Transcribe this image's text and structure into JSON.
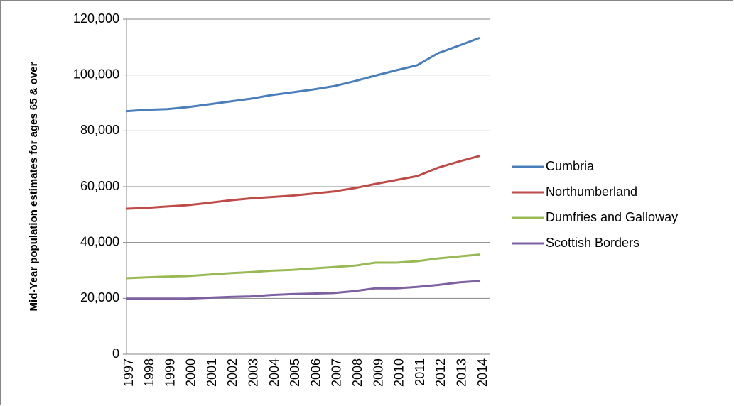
{
  "chart_data": {
    "type": "line",
    "y_label": "Mid-Year population estimates for ages 65 & over",
    "categories": [
      "1997",
      "1998",
      "1999",
      "2000",
      "2001",
      "2002",
      "2003",
      "2004",
      "2005",
      "2006",
      "2007",
      "2008",
      "2009",
      "2010",
      "2011",
      "2012",
      "2013",
      "2014"
    ],
    "series": [
      {
        "name": "Cumbria",
        "color": "#4a7ebb",
        "values": [
          87000,
          87500,
          87800,
          88500,
          89500,
          90500,
          91500,
          92800,
          93800,
          94800,
          96000,
          97800,
          99800,
          101700,
          103500,
          107800,
          110500,
          113300
        ]
      },
      {
        "name": "Northumberland",
        "color": "#be4b48",
        "values": [
          52100,
          52400,
          52900,
          53400,
          54200,
          55100,
          55800,
          56300,
          56800,
          57500,
          58300,
          59500,
          61000,
          62400,
          63800,
          66800,
          69000,
          71000
        ]
      },
      {
        "name": "Dumfries and Galloway",
        "color": "#98b954",
        "values": [
          27200,
          27500,
          27800,
          28000,
          28500,
          29000,
          29400,
          29900,
          30200,
          30700,
          31200,
          31700,
          32800,
          32800,
          33300,
          34300,
          35000,
          35700
        ]
      },
      {
        "name": "Scottish Borders",
        "color": "#7d60a0",
        "values": [
          19900,
          19900,
          19900,
          19900,
          20200,
          20500,
          20700,
          21200,
          21500,
          21700,
          21900,
          22600,
          23600,
          23600,
          24100,
          24800,
          25700,
          26200
        ]
      }
    ],
    "ylim": [
      0,
      120000
    ],
    "yticks": [
      0,
      {
        "value": 20000,
        "label": "20,000"
      },
      {
        "value": 40000,
        "label": "40,000"
      },
      {
        "value": 60000,
        "label": "60,000"
      },
      {
        "value": 80000,
        "label": "80,000"
      },
      {
        "value": 100000,
        "label": "100,000"
      },
      {
        "value": 120000,
        "label": "120,000"
      }
    ],
    "grid": true,
    "legend": "right"
  }
}
